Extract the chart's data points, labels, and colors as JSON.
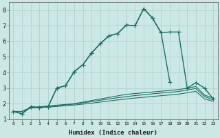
{
  "xlabel": "Humidex (Indice chaleur)",
  "bg_color": "#cce8e4",
  "line_color": "#1a6e64",
  "grid_color": "#aacfcb",
  "xlim": [
    -0.5,
    23.5
  ],
  "ylim": [
    1.0,
    8.5
  ],
  "xticks": [
    0,
    1,
    2,
    3,
    4,
    5,
    6,
    7,
    8,
    9,
    10,
    11,
    12,
    13,
    14,
    15,
    16,
    17,
    18,
    19,
    20,
    21,
    22,
    23
  ],
  "yticks": [
    1,
    2,
    3,
    4,
    5,
    6,
    7,
    8
  ],
  "lines": [
    {
      "x": [
        0,
        1,
        2,
        3,
        4,
        5,
        6,
        7,
        8,
        9,
        10,
        11,
        12,
        13,
        14,
        15,
        16,
        17,
        18
      ],
      "y": [
        1.5,
        1.35,
        1.8,
        1.75,
        1.8,
        3.0,
        3.15,
        4.05,
        4.5,
        5.25,
        5.85,
        6.35,
        6.5,
        7.05,
        7.0,
        8.1,
        7.5,
        6.55,
        3.4
      ],
      "marker": "+",
      "markersize": 4,
      "linewidth": 1.0,
      "linestyle": "-"
    },
    {
      "x": [
        0,
        1,
        2,
        3,
        4,
        5,
        6,
        7,
        8,
        9,
        10,
        11,
        12,
        13,
        14,
        15,
        16,
        17,
        18,
        19,
        20,
        21,
        22,
        23
      ],
      "y": [
        1.5,
        1.35,
        1.8,
        1.75,
        1.8,
        3.0,
        3.15,
        4.05,
        4.5,
        5.25,
        5.85,
        6.35,
        6.5,
        7.05,
        7.0,
        8.1,
        7.5,
        6.55,
        6.6,
        6.6,
        3.0,
        3.35,
        3.0,
        2.3
      ],
      "marker": "+",
      "markersize": 4,
      "linewidth": 1.0,
      "linestyle": "-"
    },
    {
      "x": [
        0,
        1,
        2,
        3,
        4,
        5,
        6,
        7,
        8,
        9,
        10,
        11,
        12,
        13,
        14,
        15,
        16,
        17,
        18,
        19,
        20,
        21,
        22,
        23
      ],
      "y": [
        1.5,
        1.5,
        1.75,
        1.8,
        1.85,
        1.9,
        1.95,
        2.0,
        2.1,
        2.2,
        2.3,
        2.4,
        2.5,
        2.6,
        2.65,
        2.7,
        2.75,
        2.8,
        2.85,
        2.9,
        3.0,
        3.1,
        2.55,
        2.35
      ],
      "marker": null,
      "markersize": 0,
      "linewidth": 0.8,
      "linestyle": "-"
    },
    {
      "x": [
        0,
        1,
        2,
        3,
        4,
        5,
        6,
        7,
        8,
        9,
        10,
        11,
        12,
        13,
        14,
        15,
        16,
        17,
        18,
        19,
        20,
        21,
        22,
        23
      ],
      "y": [
        1.5,
        1.5,
        1.75,
        1.78,
        1.82,
        1.87,
        1.92,
        1.97,
        2.05,
        2.13,
        2.22,
        2.3,
        2.38,
        2.45,
        2.52,
        2.57,
        2.63,
        2.68,
        2.73,
        2.78,
        2.88,
        2.97,
        2.45,
        2.25
      ],
      "marker": null,
      "markersize": 0,
      "linewidth": 0.8,
      "linestyle": "-"
    },
    {
      "x": [
        0,
        1,
        2,
        3,
        4,
        5,
        6,
        7,
        8,
        9,
        10,
        11,
        12,
        13,
        14,
        15,
        16,
        17,
        18,
        19,
        20,
        21,
        22,
        23
      ],
      "y": [
        1.5,
        1.5,
        1.72,
        1.75,
        1.78,
        1.82,
        1.87,
        1.91,
        1.97,
        2.03,
        2.1,
        2.17,
        2.24,
        2.3,
        2.36,
        2.41,
        2.46,
        2.51,
        2.56,
        2.61,
        2.7,
        2.79,
        2.3,
        2.15
      ],
      "marker": null,
      "markersize": 0,
      "linewidth": 0.8,
      "linestyle": "-"
    }
  ]
}
